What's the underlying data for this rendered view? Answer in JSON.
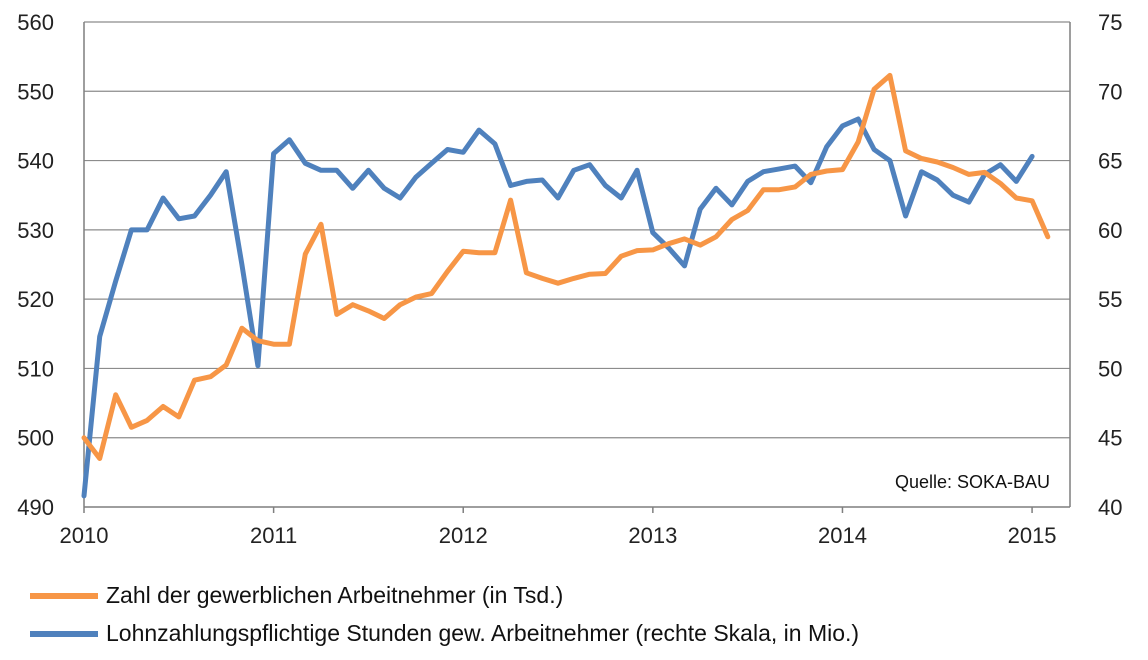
{
  "chart_data": {
    "type": "line",
    "source_note": "Quelle: SOKA-BAU",
    "x_ticks": [
      "2010",
      "2011",
      "2012",
      "2013",
      "2014",
      "2015"
    ],
    "y_left": {
      "min": 490,
      "max": 560,
      "step": 10,
      "ticks": [
        "490",
        "500",
        "510",
        "520",
        "530",
        "540",
        "550",
        "560"
      ]
    },
    "y_right": {
      "min": 40,
      "max": 75,
      "step": 5,
      "ticks": [
        "40",
        "45",
        "50",
        "55",
        "60",
        "65",
        "70",
        "75"
      ]
    },
    "grid": true,
    "legend_position": "bottom",
    "series": [
      {
        "name": "Zahl der gewerblichen Arbeitnehmer (in Tsd.)",
        "axis": "left",
        "color": "#f79646",
        "values": [
          [
            2010.0,
            500.0
          ],
          [
            2010.083,
            497.0
          ],
          [
            2010.167,
            506.2
          ],
          [
            2010.25,
            501.5
          ],
          [
            2010.333,
            502.5
          ],
          [
            2010.417,
            504.5
          ],
          [
            2010.5,
            503.0
          ],
          [
            2010.583,
            508.3
          ],
          [
            2010.667,
            508.8
          ],
          [
            2010.75,
            510.5
          ],
          [
            2010.833,
            515.8
          ],
          [
            2010.917,
            514.0
          ],
          [
            2011.0,
            513.5
          ],
          [
            2011.083,
            513.5
          ],
          [
            2011.167,
            526.5
          ],
          [
            2011.25,
            530.8
          ],
          [
            2011.333,
            517.8
          ],
          [
            2011.417,
            519.2
          ],
          [
            2011.5,
            518.3
          ],
          [
            2011.583,
            517.2
          ],
          [
            2011.667,
            519.2
          ],
          [
            2011.75,
            520.3
          ],
          [
            2011.833,
            520.8
          ],
          [
            2011.917,
            524.0
          ],
          [
            2012.0,
            526.9
          ],
          [
            2012.083,
            526.7
          ],
          [
            2012.167,
            526.7
          ],
          [
            2012.25,
            534.3
          ],
          [
            2012.333,
            523.8
          ],
          [
            2012.417,
            523.0
          ],
          [
            2012.5,
            522.3
          ],
          [
            2012.583,
            523.0
          ],
          [
            2012.667,
            523.6
          ],
          [
            2012.75,
            523.7
          ],
          [
            2012.833,
            526.2
          ],
          [
            2012.917,
            527.0
          ],
          [
            2013.0,
            527.1
          ],
          [
            2013.083,
            528.0
          ],
          [
            2013.167,
            528.7
          ],
          [
            2013.25,
            527.8
          ],
          [
            2013.333,
            529.0
          ],
          [
            2013.417,
            531.5
          ],
          [
            2013.5,
            532.8
          ],
          [
            2013.583,
            535.8
          ],
          [
            2013.667,
            535.8
          ],
          [
            2013.75,
            536.2
          ],
          [
            2013.833,
            538.0
          ],
          [
            2013.917,
            538.5
          ],
          [
            2014.0,
            538.7
          ],
          [
            2014.083,
            542.7
          ],
          [
            2014.167,
            550.3
          ],
          [
            2014.25,
            552.3
          ],
          [
            2014.333,
            541.4
          ],
          [
            2014.417,
            540.3
          ],
          [
            2014.5,
            539.8
          ],
          [
            2014.583,
            539.0
          ],
          [
            2014.667,
            538.0
          ],
          [
            2014.75,
            538.3
          ],
          [
            2014.833,
            536.7
          ],
          [
            2014.917,
            534.6
          ],
          [
            2015.0,
            534.2
          ],
          [
            2015.083,
            529.0
          ]
        ]
      },
      {
        "name": "Lohnzahlungspflichtige Stunden gew. Arbeitnehmer (rechte Skala,  in Mio.)",
        "axis": "right",
        "color": "#4f81bd",
        "values": [
          [
            2010.0,
            40.8
          ],
          [
            2010.083,
            52.3
          ],
          [
            2010.167,
            56.3
          ],
          [
            2010.25,
            60.0
          ],
          [
            2010.333,
            60.0
          ],
          [
            2010.417,
            62.3
          ],
          [
            2010.5,
            60.8
          ],
          [
            2010.583,
            61.0
          ],
          [
            2010.667,
            62.5
          ],
          [
            2010.75,
            64.2
          ],
          [
            2010.833,
            57.5
          ],
          [
            2010.917,
            50.2
          ],
          [
            2011.0,
            65.5
          ],
          [
            2011.083,
            66.5
          ],
          [
            2011.167,
            64.8
          ],
          [
            2011.25,
            64.3
          ],
          [
            2011.333,
            64.3
          ],
          [
            2011.417,
            63.0
          ],
          [
            2011.5,
            64.3
          ],
          [
            2011.583,
            63.0
          ],
          [
            2011.667,
            62.3
          ],
          [
            2011.75,
            63.8
          ],
          [
            2011.833,
            64.8
          ],
          [
            2011.917,
            65.8
          ],
          [
            2012.0,
            65.6
          ],
          [
            2012.083,
            67.2
          ],
          [
            2012.167,
            66.2
          ],
          [
            2012.25,
            63.2
          ],
          [
            2012.333,
            63.5
          ],
          [
            2012.417,
            63.6
          ],
          [
            2012.5,
            62.3
          ],
          [
            2012.583,
            64.3
          ],
          [
            2012.667,
            64.7
          ],
          [
            2012.75,
            63.2
          ],
          [
            2012.833,
            62.3
          ],
          [
            2012.917,
            64.3
          ],
          [
            2013.0,
            59.8
          ],
          [
            2013.083,
            58.7
          ],
          [
            2013.167,
            57.4
          ],
          [
            2013.25,
            61.5
          ],
          [
            2013.333,
            63.0
          ],
          [
            2013.417,
            61.8
          ],
          [
            2013.5,
            63.5
          ],
          [
            2013.583,
            64.2
          ],
          [
            2013.667,
            64.4
          ],
          [
            2013.75,
            64.6
          ],
          [
            2013.833,
            63.4
          ],
          [
            2013.917,
            66.0
          ],
          [
            2014.0,
            67.5
          ],
          [
            2014.083,
            68.0
          ],
          [
            2014.167,
            65.8
          ],
          [
            2014.25,
            65.0
          ],
          [
            2014.333,
            61.0
          ],
          [
            2014.417,
            64.2
          ],
          [
            2014.5,
            63.6
          ],
          [
            2014.583,
            62.5
          ],
          [
            2014.667,
            62.0
          ],
          [
            2014.75,
            64.0
          ],
          [
            2014.833,
            64.7
          ],
          [
            2014.917,
            63.5
          ],
          [
            2015.0,
            65.3
          ]
        ]
      }
    ]
  }
}
